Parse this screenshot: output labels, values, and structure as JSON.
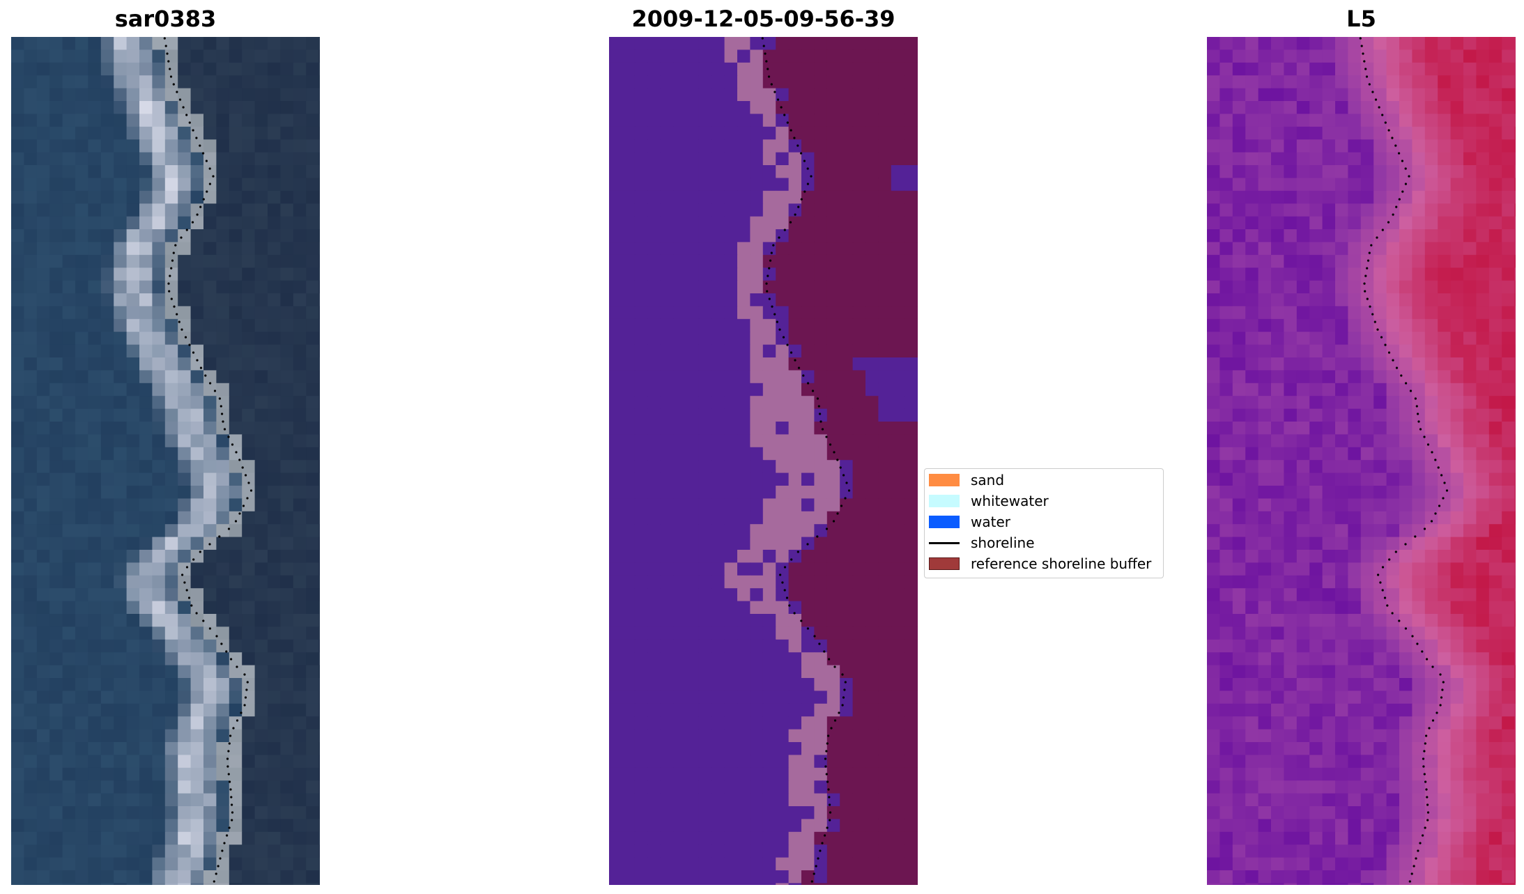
{
  "panels": [
    {
      "id": "sar",
      "title": "sar0383"
    },
    {
      "id": "classified",
      "title": "2009-12-05-09-56-39"
    },
    {
      "id": "index",
      "title": "L5"
    }
  ],
  "legend": {
    "items": [
      {
        "label": "sand",
        "color": "#ff8c42",
        "kind": "patch"
      },
      {
        "label": "whitewater",
        "color": "#c6fbff",
        "kind": "patch"
      },
      {
        "label": "water",
        "color": "#0a5cff",
        "kind": "patch"
      },
      {
        "label": "shoreline",
        "color": "#000000",
        "kind": "line"
      },
      {
        "label": "reference shoreline buffer",
        "color": "#a03a3a",
        "kind": "patch"
      }
    ]
  },
  "colors": {
    "classified_land": "#542297",
    "classified_sand_tint": "#a66a9d",
    "classified_buffer": "#6c1651",
    "sar_water": "#233c5c",
    "sar_foam": "#d8dbe8",
    "index_low": "#7a1ca0",
    "index_high": "#c2184a"
  }
}
